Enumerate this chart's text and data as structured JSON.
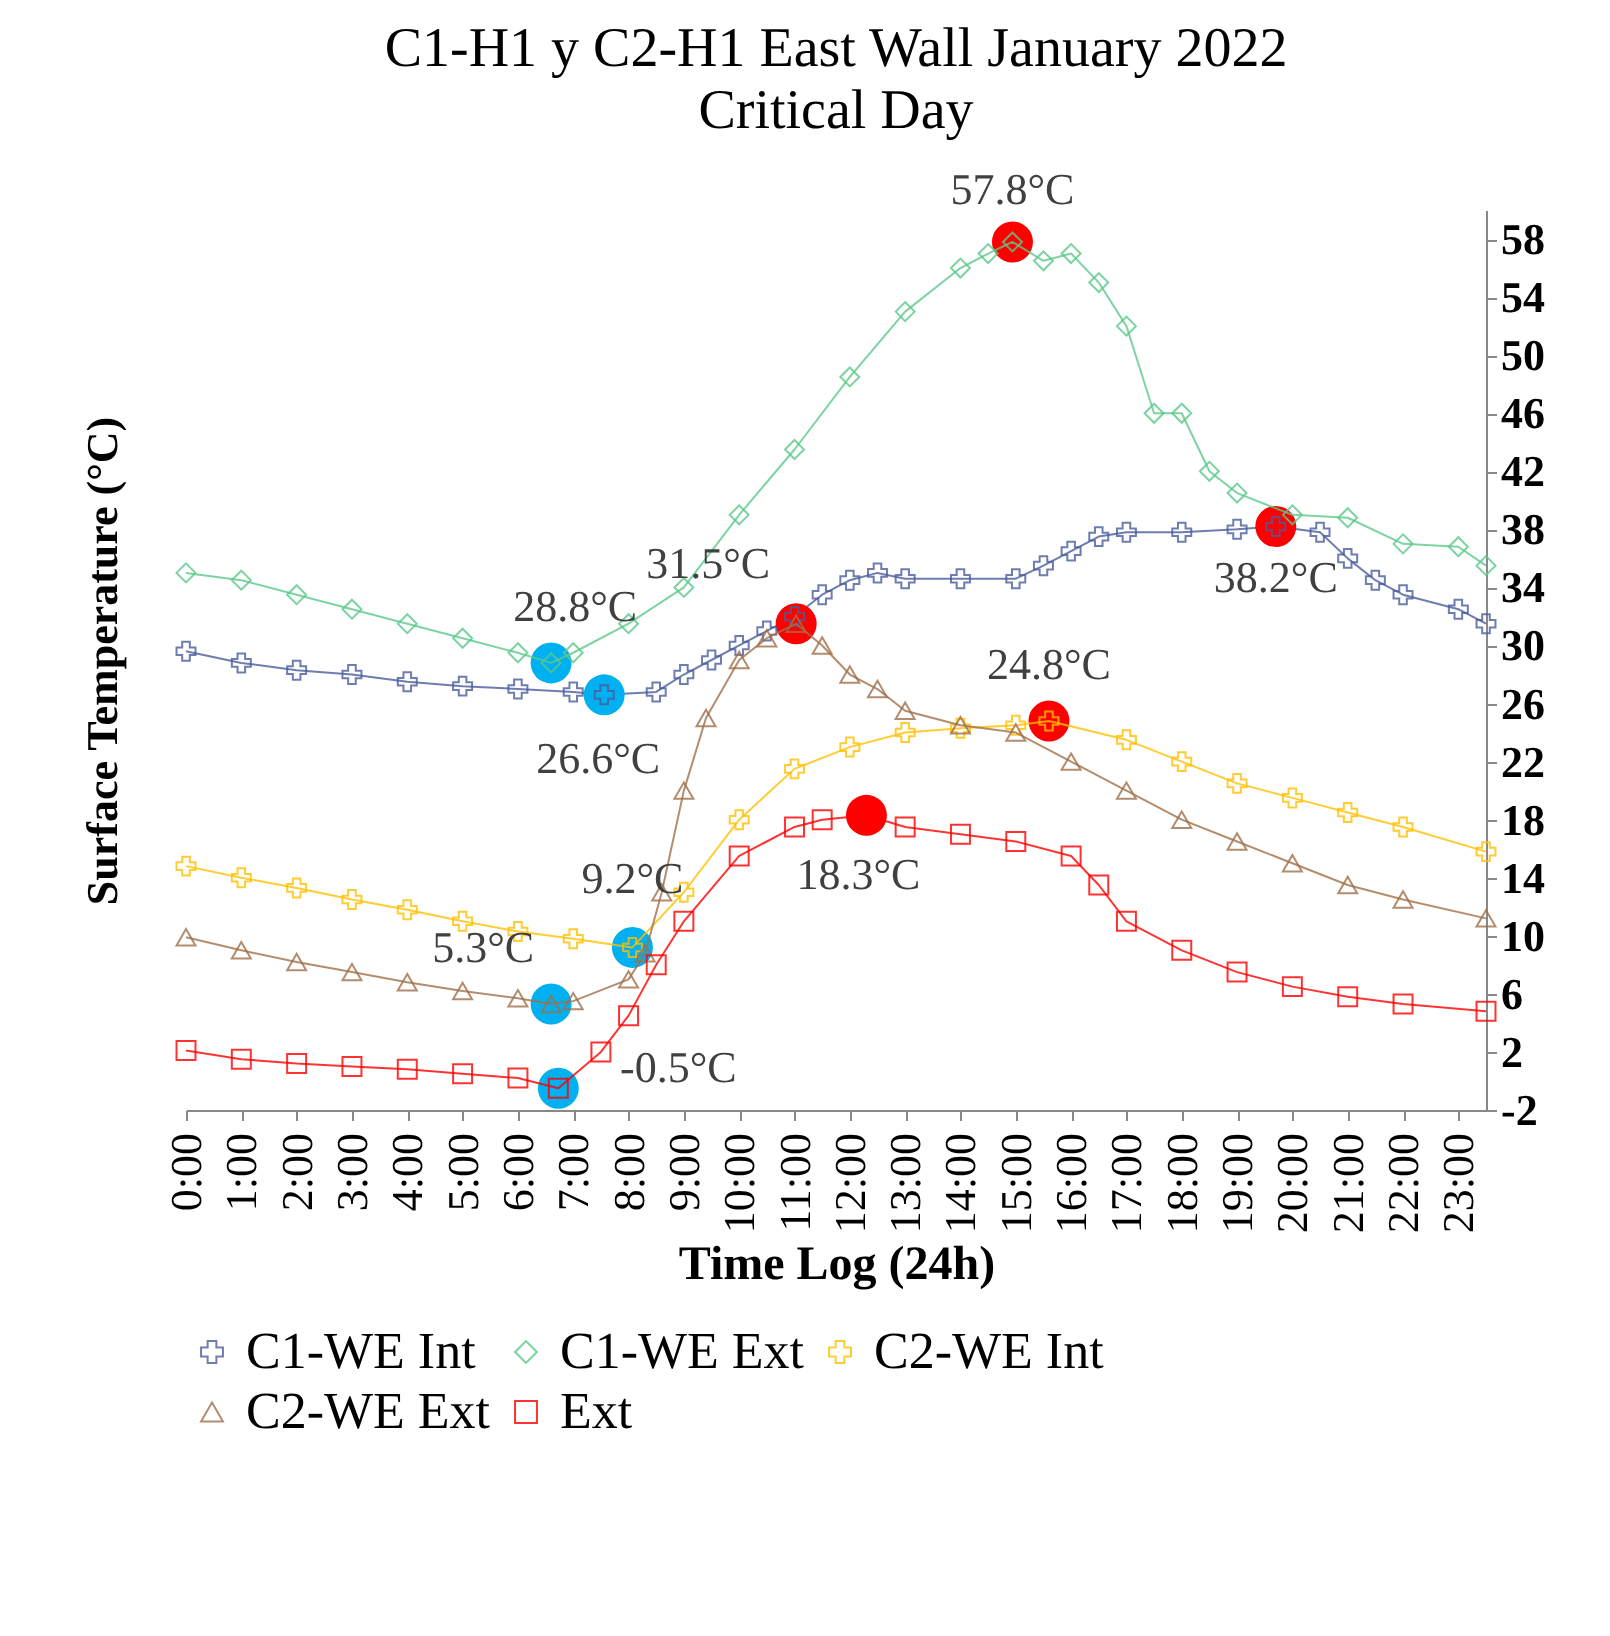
{
  "chart_data": {
    "type": "line",
    "title": "C1-H1 y C2-H1 East Wall January 2022",
    "subtitle": "Critical Day",
    "xlabel": "Time Log (24h)",
    "ylabel": "Surface Temperature (°C)",
    "xlim": [
      0,
      23.5
    ],
    "xticks": [
      {
        "value": 0,
        "label": "0:00"
      },
      {
        "value": 1,
        "label": "1:00"
      },
      {
        "value": 2,
        "label": "2:00"
      },
      {
        "value": 3,
        "label": "3:00"
      },
      {
        "value": 4,
        "label": "4:00"
      },
      {
        "value": 5,
        "label": "5:00"
      },
      {
        "value": 6,
        "label": "6:00"
      },
      {
        "value": 7,
        "label": "7:00"
      },
      {
        "value": 8,
        "label": "8:00"
      },
      {
        "value": 9,
        "label": "9:00"
      },
      {
        "value": 10,
        "label": "10:00"
      },
      {
        "value": 11,
        "label": "11:00"
      },
      {
        "value": 12,
        "label": "12:00"
      },
      {
        "value": 13,
        "label": "13:00"
      },
      {
        "value": 14,
        "label": "14:00"
      },
      {
        "value": 15,
        "label": "15:00"
      },
      {
        "value": 16,
        "label": "16:00"
      },
      {
        "value": 17,
        "label": "17:00"
      },
      {
        "value": 18,
        "label": "18:00"
      },
      {
        "value": 19,
        "label": "19:00"
      },
      {
        "value": 20,
        "label": "20:00"
      },
      {
        "value": 21,
        "label": "21:00"
      },
      {
        "value": 22,
        "label": "22:00"
      },
      {
        "value": 23,
        "label": "23:00"
      }
    ],
    "ylim": [
      -2,
      60
    ],
    "yticks": [
      -2,
      2,
      6,
      10,
      14,
      18,
      22,
      26,
      30,
      34,
      38,
      42,
      46,
      50,
      54,
      58
    ],
    "grid": false,
    "legend": "bottom",
    "line_style": "solid",
    "series": [
      {
        "name": "C1-WE Int",
        "color": "#4a5d9c",
        "marker": "cross",
        "x": [
          0,
          1,
          2,
          3,
          4,
          5,
          6,
          7,
          7.56,
          8.5,
          9,
          9.5,
          10,
          10.5,
          11,
          11.5,
          12,
          12.5,
          13,
          14,
          15,
          15.5,
          16,
          16.5,
          17,
          18,
          19,
          19.7,
          20.5,
          21,
          21.5,
          22,
          23,
          23.5
        ],
        "values": [
          29.6,
          28.8,
          28.3,
          28,
          27.5,
          27.2,
          27,
          26.8,
          26.6,
          26.8,
          28,
          29,
          30,
          31,
          32,
          33.5,
          34.5,
          35,
          34.6,
          34.6,
          34.6,
          35.5,
          36.5,
          37.5,
          37.8,
          37.8,
          38,
          38.2,
          37.8,
          36,
          34.5,
          33.5,
          32.5,
          31.5
        ]
      },
      {
        "name": "C1-WE Ext",
        "color": "#5cc98a",
        "marker": "diamond",
        "x": [
          0,
          1,
          2,
          3,
          4,
          5,
          6,
          6.6,
          7,
          8,
          9,
          10,
          11,
          12,
          13,
          14,
          14.5,
          14.94,
          15.5,
          16,
          16.5,
          17,
          17.5,
          18,
          18.5,
          19,
          20,
          21,
          22,
          23,
          23.5
        ],
        "values": [
          35,
          34.5,
          33.5,
          32.5,
          31.5,
          30.5,
          29.5,
          28.8,
          29.5,
          31.5,
          34,
          39,
          43.5,
          48.5,
          53,
          56,
          57,
          57.8,
          56.5,
          57,
          55,
          52,
          46,
          46,
          42,
          40.5,
          39,
          38.8,
          37,
          36.8,
          35.5
        ]
      },
      {
        "name": "C2-WE Int",
        "color": "#ffc000",
        "marker": "cross",
        "x": [
          0,
          1,
          2,
          3,
          4,
          5,
          6,
          7,
          8.07,
          9,
          10,
          11,
          12,
          13,
          14,
          15,
          15.6,
          17,
          18,
          19,
          20,
          21,
          22,
          23.5
        ],
        "values": [
          14.8,
          14,
          13.3,
          12.5,
          11.8,
          11,
          10.3,
          9.8,
          9.2,
          13,
          18,
          21.5,
          23,
          24,
          24.3,
          24.5,
          24.8,
          23.5,
          22,
          20.5,
          19.5,
          18.5,
          17.5,
          15.8
        ]
      },
      {
        "name": "C2-WE Ext",
        "color": "#a0704a",
        "marker": "triangle",
        "x": [
          0,
          1,
          2,
          3,
          4,
          5,
          6,
          6.6,
          7,
          8,
          8.3,
          8.6,
          9,
          9.4,
          10,
          10.5,
          11.03,
          11.5,
          12,
          12.5,
          13,
          14,
          15,
          16,
          17,
          18,
          19,
          20,
          21,
          22,
          23.5
        ],
        "values": [
          9.9,
          9,
          8.2,
          7.5,
          6.8,
          6.2,
          5.7,
          5.3,
          5.5,
          7,
          8.8,
          13,
          20,
          25,
          29,
          30.5,
          31.5,
          30,
          28,
          27,
          25.5,
          24.5,
          24,
          22,
          20,
          18,
          16.5,
          15,
          13.5,
          12.5,
          11.2
        ]
      },
      {
        "name": "Ext",
        "color": "#ff0000",
        "marker": "square",
        "x": [
          0,
          1,
          2,
          3,
          4,
          5,
          6,
          6.73,
          7.5,
          8,
          8.5,
          9,
          10,
          11,
          11.5,
          12.3,
          13,
          14,
          15,
          16,
          16.5,
          17,
          18,
          19,
          20,
          21,
          22,
          23.5
        ],
        "values": [
          2.1,
          1.5,
          1.2,
          1,
          0.8,
          0.5,
          0.2,
          -0.5,
          2,
          4.5,
          8,
          11,
          15.5,
          17.5,
          18,
          18.3,
          17.5,
          17,
          16.5,
          15.5,
          13.5,
          11,
          9,
          7.5,
          6.5,
          5.8,
          5.3,
          4.8
        ]
      },
      {
        "type": "scatter",
        "color": "#ff0000",
        "marker": "circle",
        "x": [
          11.03,
          12.3,
          14.94,
          15.6,
          19.7
        ],
        "values": [
          31.5,
          18.3,
          57.8,
          24.8,
          38.2
        ]
      },
      {
        "type": "scatter",
        "color": "#00b0f0",
        "marker": "circle",
        "x": [
          6.6,
          6.6,
          6.73,
          7.56,
          8.07
        ],
        "values": [
          28.8,
          5.3,
          -0.5,
          26.6,
          9.2
        ]
      }
    ],
    "annotations": [
      {
        "text": "57.8°C",
        "x": 14.94,
        "y": 57.8
      },
      {
        "text": "38.2°C",
        "x": 19.7,
        "y": 38.2
      },
      {
        "text": "31.5°C",
        "x": 11.03,
        "y": 31.5
      },
      {
        "text": "24.8°C",
        "x": 15.6,
        "y": 24.8
      },
      {
        "text": "18.3°C",
        "x": 12.3,
        "y": 18.3
      },
      {
        "text": "28.8°C",
        "x": 6.6,
        "y": 28.8
      },
      {
        "text": "26.6°C",
        "x": 7.56,
        "y": 26.6
      },
      {
        "text": "9.2°C",
        "x": 8.07,
        "y": 9.2
      },
      {
        "text": "5.3°C",
        "x": 6.6,
        "y": 5.3
      },
      {
        "text": "-0.5°C",
        "x": 6.73,
        "y": -0.5
      }
    ]
  }
}
